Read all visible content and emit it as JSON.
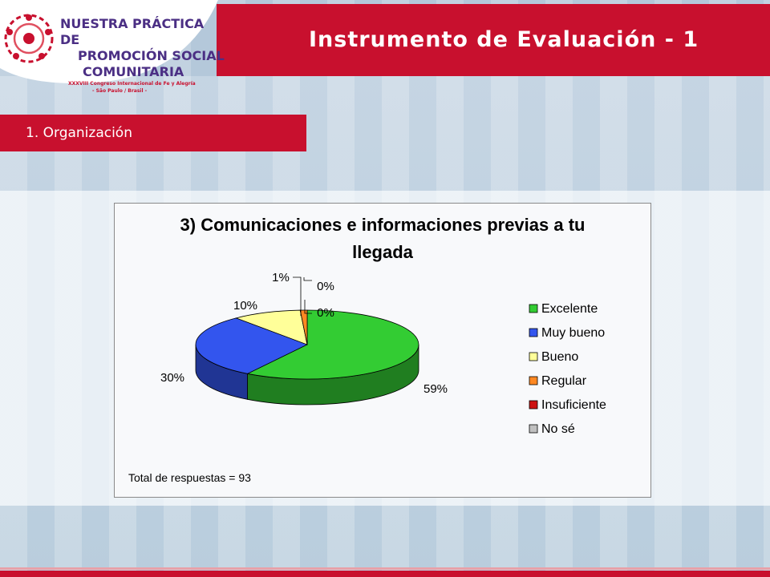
{
  "slide": {
    "title": "Instrumento de Evaluación - 1",
    "section": "1. Organización"
  },
  "logo": {
    "line1": "NUESTRA PRÁCTICA DE",
    "line2": "PROMOCIÓN SOCIAL",
    "line3": "COMUNITARIA",
    "subtitle1": "XXXVIII Congreso Internacional de Fe y Alegría",
    "subtitle2": "- São Paulo / Brasil -"
  },
  "colors": {
    "accent_red": "#c8102e",
    "logo_purple": "#4b2f84"
  },
  "chart_data": {
    "type": "pie",
    "title_line1": "3) Comunicaciones e informaciones previas a tu",
    "title_line2": "llegada",
    "categories": [
      "Excelente",
      "Muy bueno",
      "Bueno",
      "Regular",
      "Insuficiente",
      "No sé"
    ],
    "values": [
      59,
      30,
      10,
      1,
      0,
      0
    ],
    "labels": [
      "59%",
      "30%",
      "10%",
      "1%",
      "0%",
      "0%"
    ],
    "colors": [
      "#33cc33",
      "#3355ee",
      "#ffff99",
      "#ff8822",
      "#cc1111",
      "#c0c0c0"
    ],
    "legend_position": "right",
    "note": "Total de respuestas = 93"
  }
}
